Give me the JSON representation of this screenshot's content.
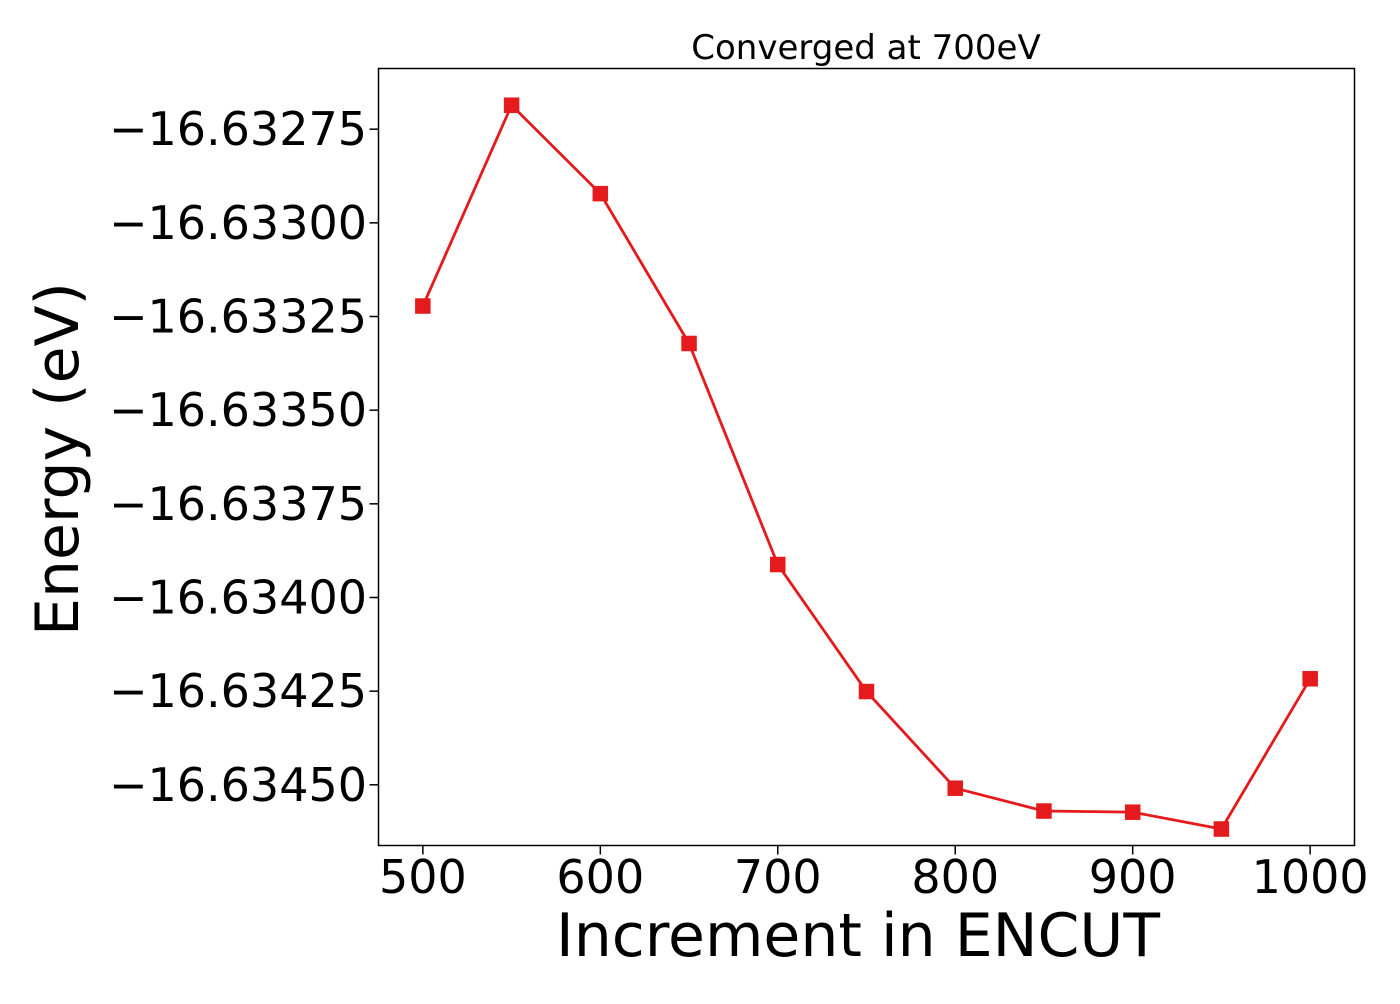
{
  "chart_data": {
    "type": "line",
    "title": "Converged at 700eV",
    "xlabel": "Increment in ENCUT",
    "ylabel": "Energy (eV)",
    "x": [
      500,
      550,
      600,
      650,
      700,
      750,
      800,
      850,
      900,
      950,
      1000
    ],
    "series": [
      {
        "values": [
          -16.633222,
          -16.632686,
          -16.632922,
          -16.633322,
          -16.633912,
          -16.634251,
          -16.634509,
          -16.63457,
          -16.634573,
          -16.634618,
          -16.634217
        ],
        "color": "#e41a1c",
        "marker": "square"
      }
    ],
    "xlim": [
      475,
      1025
    ],
    "ylim": [
      -16.634662,
      -16.632588
    ],
    "x_ticks": [
      500,
      600,
      700,
      800,
      900,
      1000
    ],
    "y_ticks": [
      -16.63275,
      -16.633,
      -16.63325,
      -16.6335,
      -16.63375,
      -16.634,
      -16.63425,
      -16.6345
    ],
    "x_tick_labels": [
      "500",
      "600",
      "700",
      "800",
      "900",
      "1000"
    ],
    "y_tick_labels": [
      "−16.63275",
      "−16.63300",
      "−16.63325",
      "−16.63350",
      "−16.63375",
      "−16.63400",
      "−16.63425",
      "−16.63450"
    ],
    "grid": false,
    "legend": "none"
  }
}
